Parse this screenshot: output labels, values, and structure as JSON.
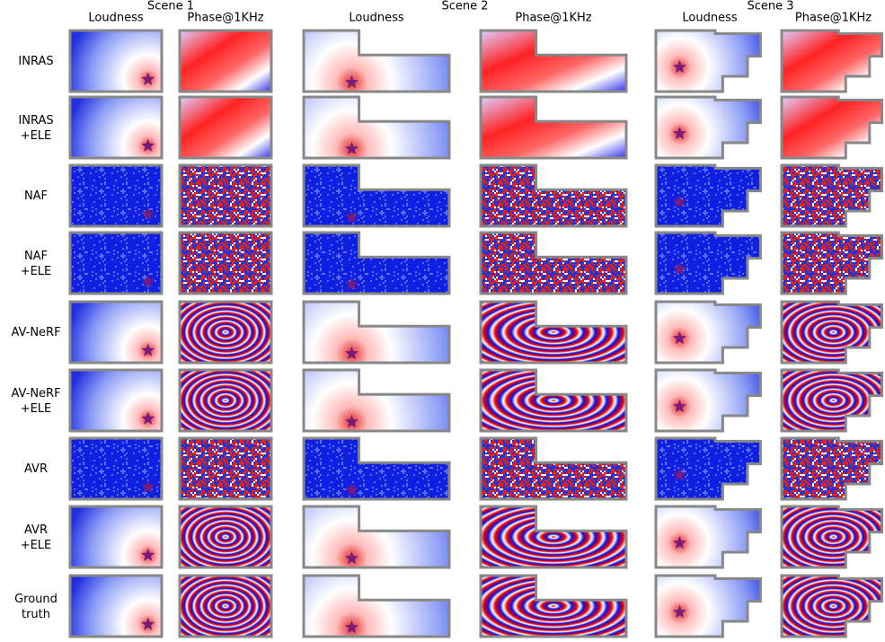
{
  "figure": {
    "scenes": [
      {
        "title": "Scene 1",
        "columns": [
          "Loudness",
          "Phase@1KHz"
        ]
      },
      {
        "title": "Scene 2",
        "columns": [
          "Loudness",
          "Phase@1KHz"
        ]
      },
      {
        "title": "Scene 3",
        "columns": [
          "Loudness",
          "Phase@1KHz"
        ]
      }
    ],
    "rows": [
      {
        "label": [
          "INRAS"
        ]
      },
      {
        "label": [
          "INRAS",
          "+ELE"
        ]
      },
      {
        "label": [
          "NAF"
        ]
      },
      {
        "label": [
          "NAF",
          "+ELE"
        ]
      },
      {
        "label": [
          "AV-NeRF"
        ]
      },
      {
        "label": [
          "AV-NeRF",
          "+ELE"
        ]
      },
      {
        "label": [
          "AVR"
        ]
      },
      {
        "label": [
          "AVR",
          "+ELE"
        ]
      },
      {
        "label": [
          "Ground",
          "truth"
        ]
      }
    ]
  }
}
